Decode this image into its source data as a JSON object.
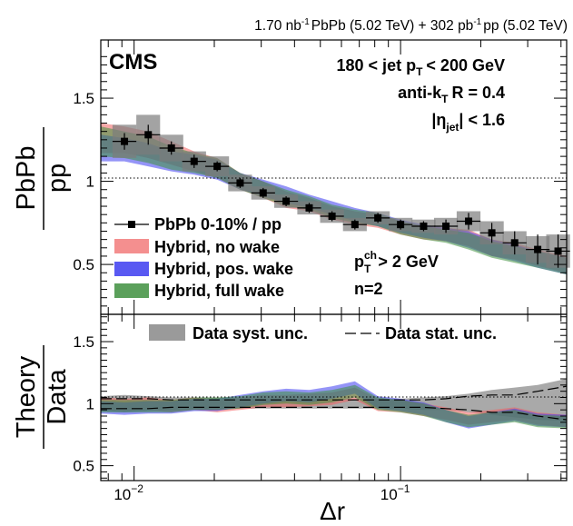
{
  "chart_data": [
    {
      "type": "line",
      "panel": "ratio",
      "header": {
        "lumi_pbpb": "1.70 nb",
        "lumi_pbpb_unit": "-1",
        "pbpb_text": "PbPb (5.02 TeV) + 302 pb",
        "lumi_pp_unit": "-1",
        "pp_text": "pp (5.02 TeV)"
      },
      "experiment": "CMS",
      "selection": {
        "jet_pt_a": "180 < jet p",
        "jet_pt_sub": "T",
        "jet_pt_b": "< 200 GeV",
        "algo_a": "anti-k",
        "algo_sub": "T",
        "algo_b": "R = 0.4",
        "eta_a": "|η",
        "eta_sub": "jet",
        "eta_b": "| < 1.6",
        "track_pt_a": "p",
        "track_pt_sup": "ch",
        "track_pt_sub": "T",
        "track_pt_b": "> 2 GeV",
        "moment": "n=2"
      },
      "ylabel_num": "PbPb",
      "ylabel_den": "pp",
      "ylim": [
        0.2,
        1.85
      ],
      "yticks": [
        0.5,
        1,
        1.5
      ],
      "ytick_labels": [
        "0.5",
        "1",
        "1.5"
      ],
      "xlim": [
        0.0075,
        0.42
      ],
      "legend": [
        {
          "label": "PbPb 0-10% / pp",
          "kind": "marker"
        },
        {
          "label": "Hybrid, no wake",
          "color": "#f06060"
        },
        {
          "label": "Hybrid, pos. wake",
          "color": "#3c3cf0"
        },
        {
          "label": "Hybrid, full wake",
          "color": "#3e8f3e"
        }
      ],
      "data": {
        "name": "PbPb 0-10% / pp",
        "x": [
          0.0092,
          0.0113,
          0.0138,
          0.0168,
          0.0205,
          0.025,
          0.0305,
          0.0372,
          0.0454,
          0.0553,
          0.0674,
          0.0822,
          0.1,
          0.122,
          0.148,
          0.18,
          0.22,
          0.268,
          0.327,
          0.39
        ],
        "y": [
          1.24,
          1.28,
          1.2,
          1.12,
          1.09,
          0.99,
          0.93,
          0.88,
          0.84,
          0.79,
          0.74,
          0.78,
          0.74,
          0.73,
          0.73,
          0.76,
          0.69,
          0.63,
          0.59,
          0.58
        ],
        "stat": [
          0.05,
          0.06,
          0.04,
          0.04,
          0.03,
          0.03,
          0.03,
          0.03,
          0.03,
          0.03,
          0.03,
          0.03,
          0.03,
          0.03,
          0.04,
          0.05,
          0.06,
          0.07,
          0.09,
          0.1
        ],
        "syst": [
          0.1,
          0.12,
          0.08,
          0.06,
          0.06,
          0.05,
          0.04,
          0.04,
          0.04,
          0.04,
          0.04,
          0.04,
          0.04,
          0.04,
          0.05,
          0.06,
          0.07,
          0.07,
          0.08,
          0.1
        ]
      },
      "series": [
        {
          "name": "Hybrid, no wake",
          "color": "#f06060",
          "x": [
            0.0075,
            0.0092,
            0.0113,
            0.0138,
            0.0168,
            0.0205,
            0.025,
            0.0305,
            0.0372,
            0.0454,
            0.0553,
            0.0674,
            0.0822,
            0.1,
            0.122,
            0.148,
            0.18,
            0.22,
            0.268,
            0.327,
            0.42
          ],
          "center": [
            1.26,
            1.25,
            1.22,
            1.17,
            1.12,
            1.08,
            1.0,
            0.95,
            0.89,
            0.86,
            0.81,
            0.78,
            0.76,
            0.72,
            0.69,
            0.68,
            0.66,
            0.6,
            0.58,
            0.54,
            0.5
          ],
          "width": [
            0.09,
            0.08,
            0.08,
            0.07,
            0.06,
            0.06,
            0.05,
            0.05,
            0.05,
            0.04,
            0.04,
            0.04,
            0.04,
            0.04,
            0.04,
            0.04,
            0.05,
            0.05,
            0.05,
            0.05,
            0.05
          ]
        },
        {
          "name": "Hybrid, pos. wake",
          "color": "#3c3cf0",
          "x": [
            0.0075,
            0.0092,
            0.0113,
            0.0138,
            0.0168,
            0.0205,
            0.025,
            0.0305,
            0.0372,
            0.0454,
            0.0553,
            0.0674,
            0.0822,
            0.1,
            0.122,
            0.148,
            0.18,
            0.22,
            0.268,
            0.327,
            0.42
          ],
          "center": [
            1.2,
            1.19,
            1.16,
            1.12,
            1.1,
            1.07,
            1.0,
            0.96,
            0.92,
            0.88,
            0.84,
            0.8,
            0.77,
            0.73,
            0.7,
            0.68,
            0.65,
            0.6,
            0.57,
            0.53,
            0.49
          ],
          "width": [
            0.08,
            0.07,
            0.07,
            0.06,
            0.06,
            0.06,
            0.05,
            0.05,
            0.05,
            0.04,
            0.04,
            0.04,
            0.04,
            0.04,
            0.04,
            0.04,
            0.05,
            0.05,
            0.05,
            0.05,
            0.05
          ]
        },
        {
          "name": "Hybrid, full wake",
          "color": "#3e8f3e",
          "x": [
            0.0075,
            0.0092,
            0.0113,
            0.0138,
            0.0168,
            0.0205,
            0.025,
            0.0305,
            0.0372,
            0.0454,
            0.0553,
            0.0674,
            0.0822,
            0.1,
            0.122,
            0.148,
            0.18,
            0.22,
            0.268,
            0.327,
            0.42
          ],
          "center": [
            1.24,
            1.22,
            1.19,
            1.14,
            1.11,
            1.08,
            1.0,
            0.95,
            0.9,
            0.87,
            0.82,
            0.79,
            0.77,
            0.72,
            0.69,
            0.67,
            0.64,
            0.59,
            0.56,
            0.53,
            0.49
          ],
          "width": [
            0.09,
            0.08,
            0.08,
            0.07,
            0.06,
            0.06,
            0.05,
            0.05,
            0.05,
            0.04,
            0.04,
            0.04,
            0.04,
            0.04,
            0.04,
            0.04,
            0.05,
            0.05,
            0.05,
            0.05,
            0.05
          ]
        }
      ]
    },
    {
      "type": "line",
      "panel": "theory_over_data",
      "ylabel_num": "Theory",
      "ylabel_den": "Data",
      "ylim": [
        0.38,
        1.72
      ],
      "yticks": [
        0.5,
        1,
        1.5
      ],
      "ytick_labels": [
        "0.5",
        "1",
        "1.5"
      ],
      "xlim": [
        0.0075,
        0.42
      ],
      "xlabel": "Δr",
      "xtick_labels": [
        {
          "value": 0.01,
          "base": "10",
          "exp": "−2"
        },
        {
          "value": 0.1,
          "base": "10",
          "exp": "−1"
        }
      ],
      "legend": [
        {
          "label": "Data syst. unc.",
          "kind": "box"
        },
        {
          "label": "Data stat. unc.",
          "kind": "dashed"
        }
      ],
      "syst_band": {
        "x": [
          0.0075,
          0.0092,
          0.0113,
          0.0138,
          0.0168,
          0.0205,
          0.025,
          0.0305,
          0.0372,
          0.0454,
          0.0553,
          0.0674,
          0.0822,
          0.1,
          0.122,
          0.148,
          0.18,
          0.22,
          0.268,
          0.327,
          0.42
        ],
        "lo": [
          0.94,
          0.93,
          0.94,
          0.95,
          0.95,
          0.95,
          0.96,
          0.96,
          0.96,
          0.96,
          0.96,
          0.96,
          0.96,
          0.96,
          0.95,
          0.95,
          0.93,
          0.91,
          0.89,
          0.87,
          0.86
        ],
        "hi": [
          1.06,
          1.07,
          1.06,
          1.05,
          1.05,
          1.05,
          1.04,
          1.04,
          1.04,
          1.04,
          1.04,
          1.04,
          1.04,
          1.04,
          1.05,
          1.06,
          1.08,
          1.11,
          1.13,
          1.15,
          1.2
        ]
      },
      "stat_lines": {
        "x": [
          0.0075,
          0.0092,
          0.0113,
          0.0138,
          0.0168,
          0.0205,
          0.025,
          0.0305,
          0.0372,
          0.0454,
          0.0553,
          0.0674,
          0.0822,
          0.1,
          0.122,
          0.148,
          0.18,
          0.22,
          0.268,
          0.327,
          0.42
        ],
        "lo": [
          0.96,
          0.96,
          0.96,
          0.97,
          0.97,
          0.97,
          0.97,
          0.97,
          0.97,
          0.97,
          0.97,
          0.97,
          0.97,
          0.97,
          0.97,
          0.96,
          0.95,
          0.93,
          0.93,
          0.9,
          0.87
        ],
        "hi": [
          1.04,
          1.04,
          1.04,
          1.03,
          1.03,
          1.03,
          1.03,
          1.03,
          1.03,
          1.03,
          1.03,
          1.03,
          1.03,
          1.03,
          1.03,
          1.04,
          1.06,
          1.07,
          1.07,
          1.1,
          1.14
        ]
      },
      "series": [
        {
          "name": "Hybrid, no wake",
          "color": "#f06060",
          "x": [
            0.0075,
            0.0092,
            0.0113,
            0.0138,
            0.0168,
            0.0205,
            0.025,
            0.0305,
            0.0372,
            0.0454,
            0.0553,
            0.0674,
            0.0822,
            0.1,
            0.122,
            0.148,
            0.18,
            0.22,
            0.268,
            0.327,
            0.42
          ],
          "center": [
            1.0,
            0.99,
            1.0,
            0.98,
            1.0,
            0.98,
            1.0,
            1.02,
            1.02,
            1.03,
            1.04,
            1.08,
            0.99,
            0.98,
            0.95,
            0.92,
            0.88,
            0.9,
            0.92,
            0.88,
            0.86
          ],
          "width": [
            0.05,
            0.05,
            0.05,
            0.05,
            0.05,
            0.05,
            0.05,
            0.05,
            0.05,
            0.05,
            0.05,
            0.05,
            0.05,
            0.05,
            0.05,
            0.05,
            0.05,
            0.05,
            0.05,
            0.05,
            0.05
          ]
        },
        {
          "name": "Hybrid, pos. wake",
          "color": "#3c3cf0",
          "x": [
            0.0075,
            0.0092,
            0.0113,
            0.0138,
            0.0168,
            0.0205,
            0.025,
            0.0305,
            0.0372,
            0.0454,
            0.0553,
            0.0674,
            0.0822,
            0.1,
            0.122,
            0.148,
            0.18,
            0.22,
            0.268,
            0.327,
            0.42
          ],
          "center": [
            0.97,
            0.96,
            0.97,
            0.97,
            0.99,
            0.99,
            1.02,
            1.05,
            1.07,
            1.06,
            1.09,
            1.13,
            1.01,
            0.99,
            0.96,
            0.9,
            0.85,
            0.88,
            0.91,
            0.87,
            0.86
          ],
          "width": [
            0.05,
            0.05,
            0.05,
            0.05,
            0.05,
            0.05,
            0.05,
            0.05,
            0.05,
            0.05,
            0.05,
            0.05,
            0.05,
            0.05,
            0.05,
            0.05,
            0.05,
            0.05,
            0.05,
            0.05,
            0.05
          ]
        },
        {
          "name": "Hybrid, full wake",
          "color": "#3e8f3e",
          "x": [
            0.0075,
            0.0092,
            0.0113,
            0.0138,
            0.0168,
            0.0205,
            0.025,
            0.0305,
            0.0372,
            0.0454,
            0.0553,
            0.0674,
            0.0822,
            0.1,
            0.122,
            0.148,
            0.18,
            0.22,
            0.268,
            0.327,
            0.42
          ],
          "center": [
            0.98,
            0.98,
            0.98,
            0.98,
            1.0,
            1.0,
            1.01,
            1.04,
            1.05,
            1.04,
            1.06,
            1.1,
            1.0,
            0.98,
            0.95,
            0.9,
            0.86,
            0.88,
            0.9,
            0.86,
            0.85
          ],
          "width": [
            0.05,
            0.05,
            0.05,
            0.05,
            0.05,
            0.05,
            0.05,
            0.05,
            0.05,
            0.05,
            0.05,
            0.05,
            0.05,
            0.05,
            0.05,
            0.05,
            0.05,
            0.05,
            0.05,
            0.05,
            0.05
          ]
        }
      ]
    }
  ]
}
